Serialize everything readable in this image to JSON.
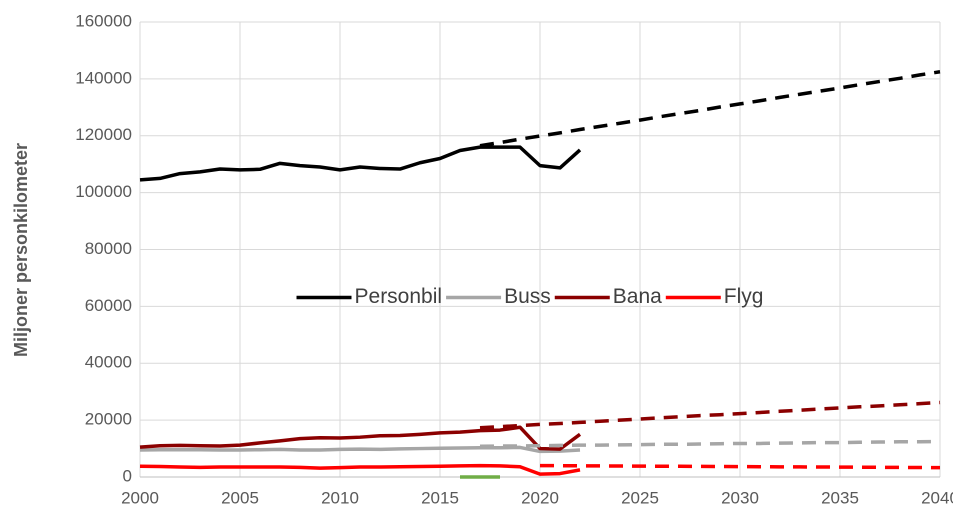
{
  "chart_data": {
    "type": "line",
    "y_label": "Miljoner personkilometer",
    "x": [
      2000,
      2001,
      2002,
      2003,
      2004,
      2005,
      2006,
      2007,
      2008,
      2009,
      2010,
      2011,
      2012,
      2013,
      2014,
      2015,
      2016,
      2017,
      2018,
      2019,
      2020,
      2021,
      2022,
      2023,
      2024,
      2025,
      2026,
      2027,
      2028,
      2029,
      2030,
      2031,
      2032,
      2033,
      2034,
      2035,
      2036,
      2037,
      2038,
      2039,
      2040
    ],
    "xlim": [
      2000,
      2040
    ],
    "xticks": [
      2000,
      2005,
      2010,
      2015,
      2020,
      2025,
      2030,
      2035,
      2040
    ],
    "ylim": [
      0,
      160000
    ],
    "yticks": [
      0,
      20000,
      40000,
      60000,
      80000,
      100000,
      120000,
      140000,
      160000
    ],
    "grid": true,
    "legend": "center",
    "series": [
      {
        "name": "Personbil",
        "color": "#000000",
        "values": [
          104500,
          105000,
          106700,
          107300,
          108300,
          108000,
          108200,
          110300,
          109500,
          109000,
          108000,
          109000,
          108500,
          108300,
          110500,
          112000,
          114800,
          116000,
          116000,
          116000,
          109500,
          108700,
          115000,
          null,
          null,
          null,
          null,
          null,
          null,
          null,
          null,
          null,
          null,
          null,
          null,
          null,
          null,
          null,
          null,
          null,
          null
        ]
      },
      {
        "name": "Buss",
        "color": "#a6a6a6",
        "values": [
          9500,
          9600,
          9600,
          9600,
          9500,
          9500,
          9600,
          9700,
          9500,
          9500,
          9700,
          9800,
          9700,
          9900,
          10000,
          10100,
          10200,
          10300,
          10300,
          10400,
          9000,
          9100,
          9500,
          null,
          null,
          null,
          null,
          null,
          null,
          null,
          null,
          null,
          null,
          null,
          null,
          null,
          null,
          null,
          null,
          null,
          null
        ]
      },
      {
        "name": "Bana",
        "color": "#8b0000",
        "values": [
          10500,
          11000,
          11100,
          11000,
          10900,
          11200,
          12000,
          12700,
          13500,
          13800,
          13700,
          14000,
          14500,
          14600,
          15000,
          15500,
          15800,
          16300,
          16500,
          17500,
          10000,
          9800,
          15000,
          null,
          null,
          null,
          null,
          null,
          null,
          null,
          null,
          null,
          null,
          null,
          null,
          null,
          null,
          null,
          null,
          null,
          null
        ]
      },
      {
        "name": "Flyg",
        "color": "#ff0000",
        "values": [
          3800,
          3700,
          3500,
          3400,
          3500,
          3500,
          3500,
          3500,
          3400,
          3100,
          3300,
          3500,
          3500,
          3600,
          3700,
          3800,
          3900,
          4000,
          3900,
          3600,
          1000,
          1200,
          2500,
          null,
          null,
          null,
          null,
          null,
          null,
          null,
          null,
          null,
          null,
          null,
          null,
          null,
          null,
          null,
          null,
          null,
          null
        ]
      },
      {
        "color": "#000000",
        "dashed": true,
        "values": [
          null,
          null,
          null,
          null,
          null,
          null,
          null,
          null,
          null,
          null,
          null,
          null,
          null,
          null,
          null,
          null,
          null,
          116500,
          117600,
          118800,
          119900,
          121000,
          122200,
          123300,
          124400,
          125500,
          126700,
          127800,
          128900,
          130100,
          131200,
          132300,
          133500,
          134600,
          135700,
          136800,
          138000,
          139100,
          140200,
          141400,
          142500
        ]
      },
      {
        "color": "#a6a6a6",
        "dashed": true,
        "values": [
          null,
          null,
          null,
          null,
          null,
          null,
          null,
          null,
          null,
          null,
          null,
          null,
          null,
          null,
          null,
          null,
          null,
          10800,
          10900,
          10900,
          11000,
          11100,
          11200,
          11200,
          11300,
          11400,
          11500,
          11500,
          11600,
          11700,
          11800,
          11800,
          11900,
          12000,
          12100,
          12100,
          12200,
          12300,
          12400,
          12400,
          12500
        ]
      },
      {
        "color": "#8b0000",
        "dashed": true,
        "values": [
          null,
          null,
          null,
          null,
          null,
          null,
          null,
          null,
          null,
          null,
          null,
          null,
          null,
          null,
          null,
          null,
          null,
          17300,
          17700,
          18100,
          18500,
          18800,
          19200,
          19600,
          20000,
          20400,
          20800,
          21200,
          21600,
          21900,
          22300,
          22700,
          23100,
          23500,
          23900,
          24300,
          24700,
          25000,
          25400,
          25800,
          26200
        ]
      },
      {
        "color": "#ff0000",
        "dashed": true,
        "values": [
          null,
          null,
          null,
          null,
          null,
          null,
          null,
          null,
          null,
          null,
          null,
          null,
          null,
          null,
          null,
          null,
          null,
          null,
          null,
          null,
          4000,
          3970,
          3930,
          3900,
          3860,
          3830,
          3790,
          3760,
          3720,
          3690,
          3650,
          3620,
          3580,
          3550,
          3510,
          3480,
          3440,
          3410,
          3370,
          3340,
          3300
        ]
      },
      {
        "color": "#70ad47",
        "values": [
          null,
          null,
          null,
          null,
          null,
          null,
          null,
          null,
          null,
          null,
          null,
          null,
          null,
          null,
          null,
          null,
          0,
          0,
          0,
          null,
          null,
          null,
          null,
          null,
          null,
          null,
          null,
          null,
          null,
          null,
          null,
          null,
          null,
          null,
          null,
          null,
          null,
          null,
          null,
          null,
          null
        ]
      }
    ]
  }
}
